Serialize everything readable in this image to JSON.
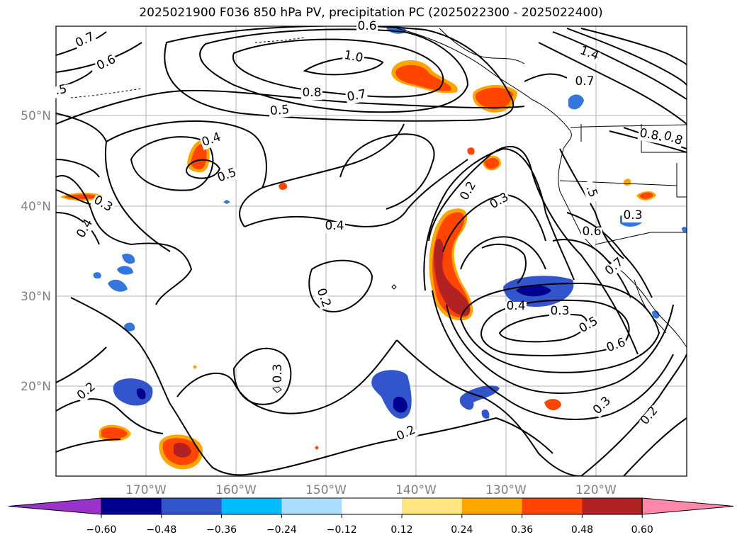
{
  "title": "2025021900 F036 850 hPa PV, precipitation PC (2025022300 - 2025022400)",
  "lat_labels": [
    "50°N",
    "40°N",
    "30°N",
    "20°N"
  ],
  "lon_labels": [
    "170°W",
    "160°W",
    "150°W",
    "140°W",
    "130°W",
    "120°W"
  ],
  "colorbar": {
    "ticks": [
      "−0.60",
      "−0.48",
      "−0.36",
      "−0.24",
      "−0.12",
      "0.12",
      "0.24",
      "0.36",
      "0.48",
      "0.60"
    ],
    "colors": [
      "#9933cc",
      "#000090",
      "#3355cc",
      "#00bbff",
      "#aaddff",
      "#ffffff",
      "#ffe680",
      "#ffa500",
      "#ff4500",
      "#b22222",
      "#ff88aa"
    ]
  },
  "contour_labels": [
    {
      "text": "0.7"
    },
    {
      "text": "0.6"
    },
    {
      "text": ".5"
    },
    {
      "text": "0.6"
    },
    {
      "text": "1.0"
    },
    {
      "text": "0.8"
    },
    {
      "text": "0.7"
    },
    {
      "text": "0.5"
    },
    {
      "text": "0.4"
    },
    {
      "text": "0.5"
    },
    {
      "text": "0.3"
    },
    {
      "text": "0.4"
    },
    {
      "text": "0.4"
    },
    {
      "text": "0.2"
    },
    {
      "text": "0.2"
    },
    {
      "text": "0.3"
    },
    {
      "text": "0.4"
    },
    {
      "text": "0.3"
    },
    {
      "text": "0.5"
    },
    {
      "text": "0.6"
    },
    {
      "text": "0.3"
    },
    {
      "text": "0.2"
    },
    {
      "text": "0.2"
    },
    {
      "text": "0.3"
    },
    {
      "text": "0.2"
    },
    {
      "text": "0.6"
    },
    {
      "text": "0.7"
    },
    {
      "text": "0.3"
    },
    {
      "text": "0.7"
    },
    {
      "text": "1.4"
    },
    {
      "text": "0.8"
    },
    {
      "text": "0.8"
    },
    {
      "text": ".5"
    }
  ]
}
